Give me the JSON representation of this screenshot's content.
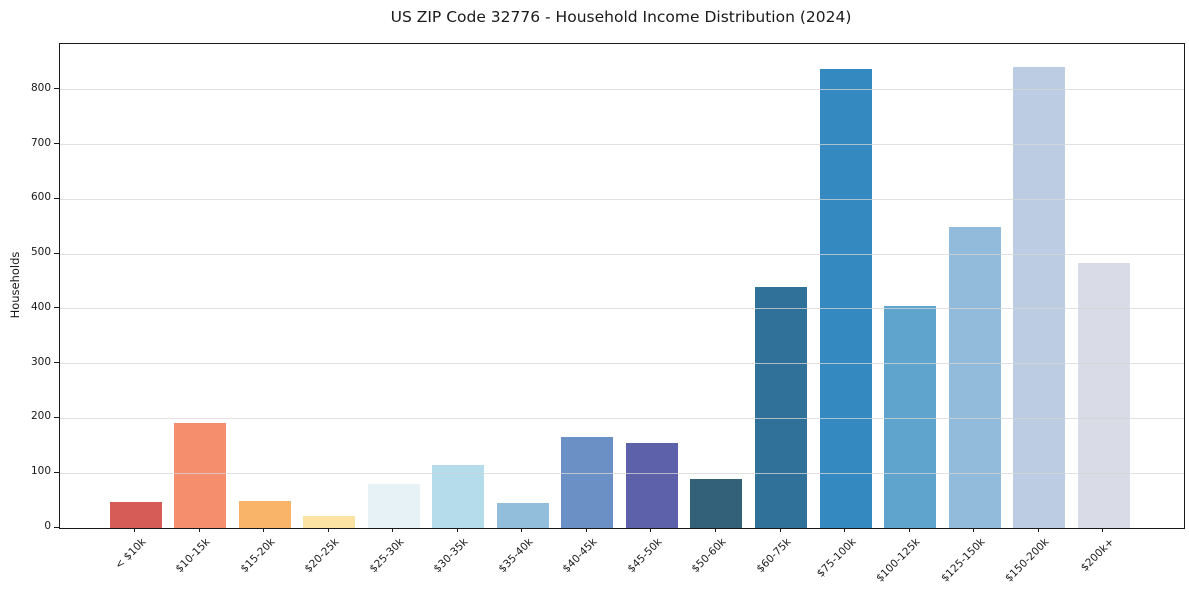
{
  "title": "US ZIP Code 32776 - Household Income Distribution (2024)",
  "chart_data": {
    "type": "bar",
    "title": "US ZIP Code 32776 - Household Income Distribution (2024)",
    "xlabel": "",
    "ylabel": "Households",
    "categories": [
      "< $10k",
      "$10-15k",
      "$15-20k",
      "$20-25k",
      "$25-30k",
      "$30-35k",
      "$35-40k",
      "$40-45k",
      "$45-50k",
      "$50-60k",
      "$60-75k",
      "$75-100k",
      "$100-125k",
      "$125-150k",
      "$150-200k",
      "$200k+"
    ],
    "values": [
      48,
      191,
      50,
      22,
      80,
      116,
      46,
      167,
      156,
      89,
      441,
      839,
      406,
      549,
      842,
      484
    ],
    "bar_colors": [
      "#d65c58",
      "#f58e6c",
      "#f9b46a",
      "#fbe3a3",
      "#e6f2f5",
      "#b5dcea",
      "#93bedb",
      "#6b90c6",
      "#5c61a9",
      "#336179",
      "#30719a",
      "#3389c0",
      "#5ea4cd",
      "#92badb",
      "#bccde3",
      "#d9dbe7"
    ],
    "yticks": [
      0,
      100,
      200,
      300,
      400,
      500,
      600,
      700,
      800
    ],
    "ylim": [
      0,
      884
    ],
    "grid": "horizontal-light",
    "legend": "none",
    "plot_background": "#ffffff",
    "spine_color": "#1a1a1a"
  }
}
